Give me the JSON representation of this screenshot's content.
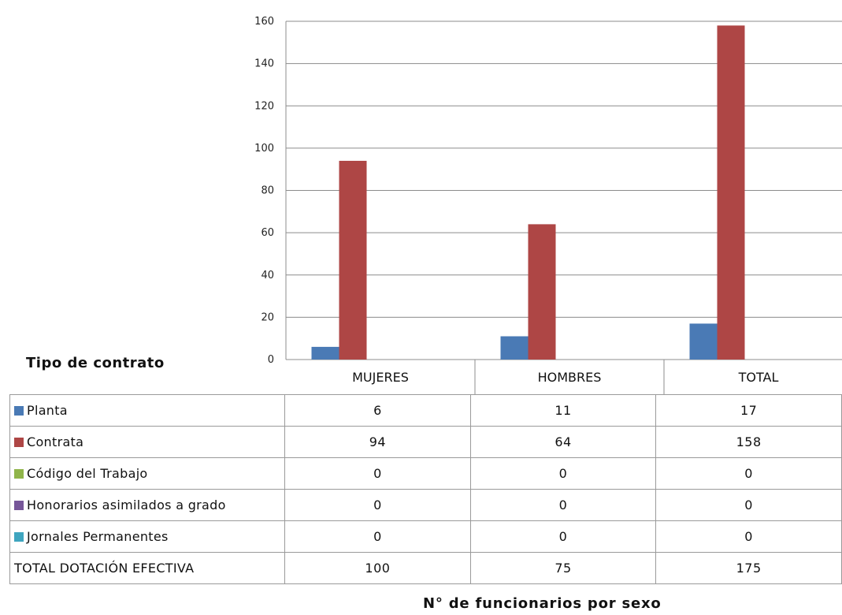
{
  "chart_data": {
    "type": "bar",
    "categories": [
      "MUJERES",
      "HOMBRES",
      "TOTAL"
    ],
    "ylim": [
      0,
      160
    ],
    "yticks": [
      0,
      20,
      40,
      60,
      80,
      100,
      120,
      140,
      160
    ],
    "grid": true,
    "series": [
      {
        "name": "Planta",
        "values": [
          6,
          11,
          17
        ],
        "color": "#4a7ab5"
      },
      {
        "name": "Contrata",
        "values": [
          94,
          64,
          158
        ],
        "color": "#ae4645"
      },
      {
        "name": "Código del Trabajo",
        "values": [
          0,
          0,
          0
        ],
        "color": "#90b54a"
      },
      {
        "name": "Honorarios asimilados a grado",
        "values": [
          0,
          0,
          0
        ],
        "color": "#765699"
      },
      {
        "name": "Jornales Permanentes",
        "values": [
          0,
          0,
          0
        ],
        "color": "#3fa5bf"
      }
    ],
    "table_total": {
      "label": "TOTAL DOTACIÓN EFECTIVA",
      "values": [
        100,
        75,
        175
      ]
    },
    "row_header_title": "Tipo de contrato",
    "xlabel": "N° de funcionarios por sexo"
  }
}
